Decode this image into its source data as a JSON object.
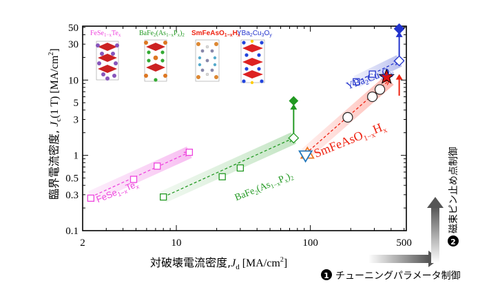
{
  "chart_data": {
    "type": "scatter",
    "xlabel_prefix": "対破壊電流密度,",
    "xlabel_var": "J",
    "xlabel_sub": "d",
    "xlabel_unit": " [MA/cm",
    "xlabel_unit_tail": "]",
    "ylabel_prefix": "臨界電流密度, ",
    "ylabel_var": "J",
    "ylabel_sub": "c",
    "ylabel_mid": "(1 T) [MA/cm",
    "ylabel_tail": "]",
    "xscale": "log",
    "yscale": "log",
    "xlim": [
      2,
      520
    ],
    "ylim": [
      0.1,
      52
    ],
    "x_ticks": [
      {
        "v": 2,
        "label": "2"
      },
      {
        "v": 10,
        "label": "10"
      },
      {
        "v": 100,
        "label": "100"
      },
      {
        "v": 500,
        "label": "500"
      }
    ],
    "y_ticks": [
      {
        "v": 0.1,
        "label": "0.1"
      },
      {
        "v": 0.3,
        "label": "0.3"
      },
      {
        "v": 0.5,
        "label": "0.5"
      },
      {
        "v": 1,
        "label": "1"
      },
      {
        "v": 3,
        "label": "3"
      },
      {
        "v": 5,
        "label": "5"
      },
      {
        "v": 10,
        "label": "10"
      },
      {
        "v": 30,
        "label": "30"
      },
      {
        "v": 50,
        "label": "50"
      }
    ],
    "series": [
      {
        "name": "FeSe1-xTex",
        "color": "#ee44dd",
        "marker": "square-open",
        "x": [
          2.3,
          4.8,
          7.2,
          12.5
        ],
        "y": [
          0.27,
          0.48,
          0.72,
          1.1
        ],
        "arrow": {
          "from": [
            2.3,
            0.28
          ],
          "to": [
            12.5,
            1.1
          ]
        }
      },
      {
        "name": "BaFe2(As1-xPx)2",
        "color": "#229922",
        "marker": "square-open-diamond",
        "x": [
          8.0,
          22,
          30,
          75
        ],
        "y": [
          0.28,
          0.52,
          0.68,
          1.7
        ],
        "arrow": {
          "from": [
            8.0,
            0.28
          ],
          "to": [
            75,
            1.7
          ]
        },
        "filled": {
          "x": 75,
          "y": 5.3
        },
        "vertical_arrow": {
          "x": 75,
          "from": 1.9,
          "to": 4.8
        }
      },
      {
        "name": "SmFeAsO1-xHx",
        "color": "#ee2211",
        "marker": "circle-open",
        "open_triangles": [
          {
            "x": 95,
            "y": 1.05,
            "dir": "up",
            "color": "#ee7722"
          },
          {
            "x": 92,
            "y": 1.0,
            "dir": "down",
            "color": "#2277bb"
          }
        ],
        "x": [
          190,
          290,
          330
        ],
        "y": [
          3.2,
          6.0,
          7.5
        ],
        "arrow": {
          "from": [
            92,
            1.05
          ],
          "to": [
            390,
            10.0
          ]
        },
        "star": {
          "x": 370,
          "y": 11.0
        },
        "vertical_arrow": {
          "x": 460,
          "from": 6.2,
          "to": 12.0
        }
      },
      {
        "name": "YBa2Cu3Oy",
        "color": "#2233cc",
        "marker": "diamond-open",
        "x": [
          220,
          290,
          460
        ],
        "y": [
          9.5,
          12.0,
          18.0
        ],
        "arrow": {
          "from": [
            220,
            9.5
          ],
          "to": [
            460,
            18.0
          ]
        },
        "filled": {
          "x": 460,
          "y": 48
        },
        "vertical_arrow": {
          "x": 460,
          "from": 20,
          "to": 44
        }
      }
    ],
    "annotations": [
      {
        "text": "FeSe1-xTex",
        "main": "FeSe",
        "sub1": "1−x",
        "main2": "Te",
        "sub2": "x",
        "color": "#ee44dd",
        "x": 2.6,
        "y": 0.235,
        "rot": -22,
        "size": 13
      },
      {
        "text": "BaFe2(As1-xPx)2",
        "color": "#229922",
        "x": 28,
        "y": 0.25,
        "rot": -22,
        "size": 14
      },
      {
        "text": "SmFeAsO1-xHx",
        "color": "#ee2211",
        "x": 110,
        "y": 0.93,
        "rot": -22,
        "size": 18
      },
      {
        "text": "YBa2Cu3Oy",
        "color": "#2233cc",
        "x": 190,
        "y": 7.5,
        "rot": -20,
        "size": 15
      }
    ],
    "legend": {
      "placement": "top-left",
      "entries": [
        {
          "label": "FeSe1-xTex",
          "color": "#ee44dd"
        },
        {
          "label": "BaFe2(As1-xPx)2",
          "color": "#229922"
        },
        {
          "label": "SmFeAsO1-xHx",
          "color": "#ee2211"
        },
        {
          "label": "YBa2Cu3Oy",
          "color": "#2233cc"
        }
      ]
    }
  },
  "side": {
    "tuning_num": "1",
    "tuning_label": "チューニングパラメータ制御",
    "pinning_num": "2",
    "pinning_label": "磁束ピン止め点制御"
  }
}
